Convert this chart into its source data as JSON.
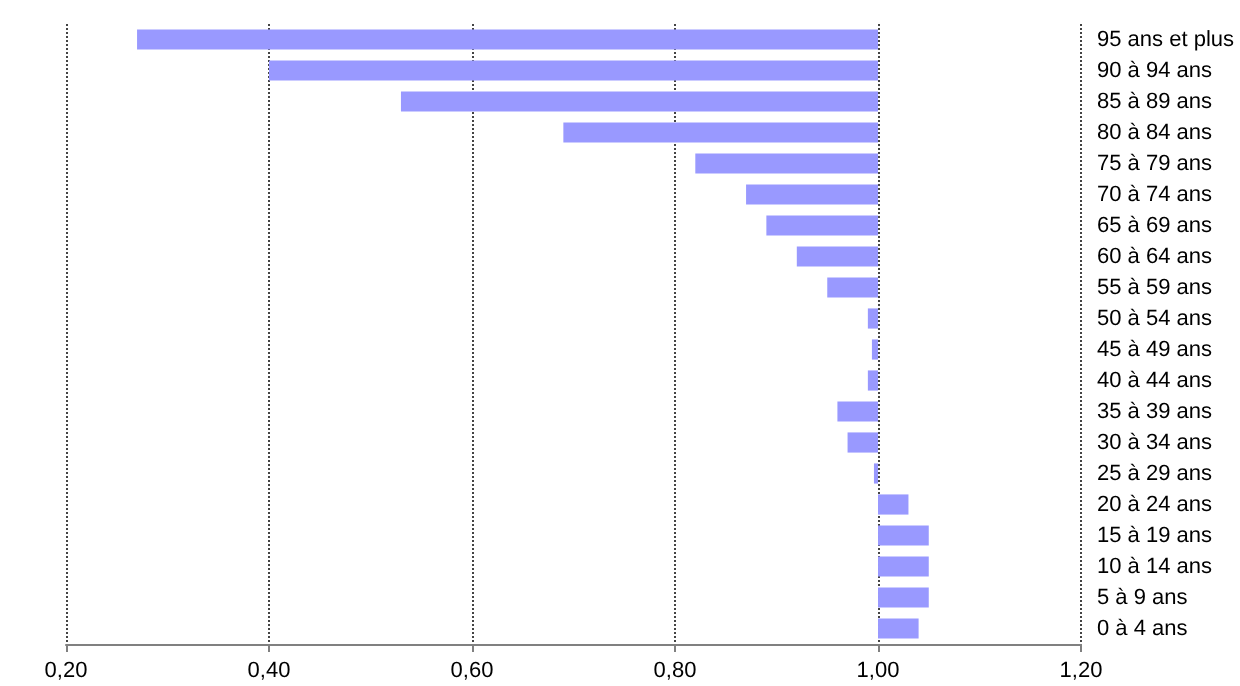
{
  "chart_data": {
    "type": "bar",
    "orientation": "horizontal",
    "categories": [
      "95 ans et plus",
      "90 à 94 ans",
      "85 à 89 ans",
      "80 à 84 ans",
      "75 à 79 ans",
      "70 à 74 ans",
      "65 à 69 ans",
      "60 à 64 ans",
      "55 à 59 ans",
      "50 à 54 ans",
      "45 à 49 ans",
      "40 à 44 ans",
      "35 à 39 ans",
      "30 à 34 ans",
      "25 à 29 ans",
      "20 à 24 ans",
      "15 à 19 ans",
      "10 à 14 ans",
      "5 à 9 ans",
      "0 à 4 ans"
    ],
    "base": [
      1,
      1,
      1,
      1,
      1,
      1,
      1,
      1,
      1,
      1,
      1,
      1,
      1,
      1,
      1,
      1,
      1,
      1,
      1,
      1
    ],
    "values": [
      -0.73,
      -0.6,
      -0.47,
      -0.31,
      -0.18,
      -0.13,
      -0.11,
      -0.08,
      -0.05,
      -0.01,
      -0.006,
      -0.01,
      -0.04,
      -0.03,
      -0.004,
      0.03,
      0.05,
      0.05,
      0.05,
      0.04
    ],
    "color": "#9999ff",
    "xlim": [
      0.2,
      1.2
    ],
    "xticks": [
      {
        "value": 0.2,
        "label": "0,20"
      },
      {
        "value": 0.4,
        "label": "0,40"
      },
      {
        "value": 0.6,
        "label": "0,60"
      },
      {
        "value": 0.8,
        "label": "0,80"
      },
      {
        "value": 1.0,
        "label": "1,00"
      },
      {
        "value": 1.2,
        "label": "1,20"
      }
    ],
    "grid": "x"
  }
}
